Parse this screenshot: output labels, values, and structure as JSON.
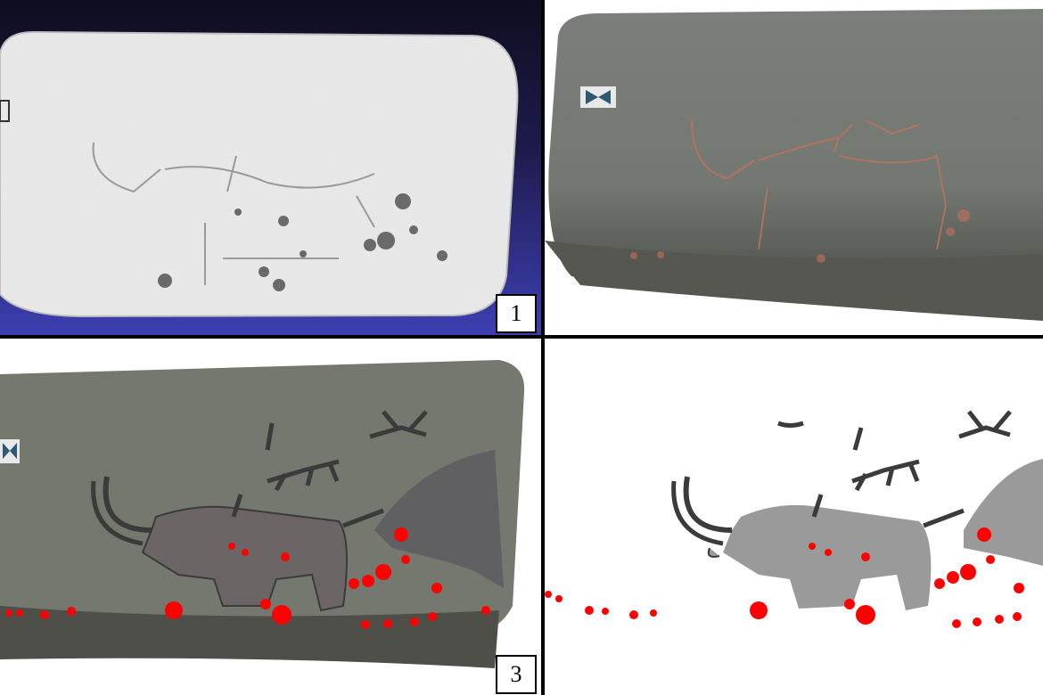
{
  "panels": [
    {
      "label": "1",
      "kind": "3d-mesh-render"
    },
    {
      "label": "",
      "kind": "photograph"
    },
    {
      "label": "3",
      "kind": "photograph-with-tracing-overlay"
    },
    {
      "label": "",
      "kind": "tracing"
    }
  ],
  "colors": {
    "mesh_bg_top": "#0e0e1f",
    "mesh_bg_bottom": "#3d3fb1",
    "rock": "#6f736c",
    "ochre_line": "#c0735c",
    "tracing_dark": "#3b3b3b",
    "tracing_gray": "#9a9a9a",
    "cupule_red": "#ff0000",
    "divider": "#000000"
  }
}
